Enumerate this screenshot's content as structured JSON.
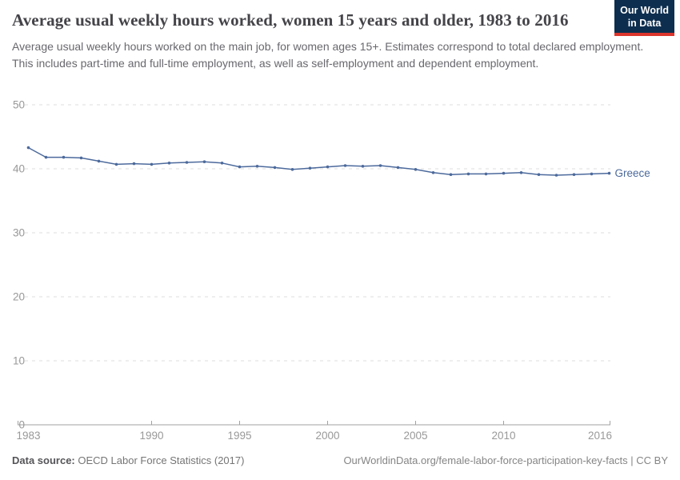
{
  "header": {
    "title": "Average usual weekly hours worked, women 15 years and older, 1983 to 2016",
    "subtitle": "Average usual weekly hours worked on the main job, for women ages 15+. Estimates correspond to total declared employment. This includes part-time and full-time employment, as well as self-employment and dependent employment."
  },
  "logo": {
    "line1": "Our World",
    "line2": "in Data",
    "background": "#0d2e4f",
    "accent": "#dc352c"
  },
  "chart_data": {
    "type": "line",
    "title": "Average usual weekly hours worked, women 15 years and older, 1983 to 2016",
    "xlabel": "",
    "ylabel": "",
    "x": [
      1983,
      1984,
      1985,
      1986,
      1987,
      1988,
      1989,
      1990,
      1991,
      1992,
      1993,
      1994,
      1995,
      1996,
      1997,
      1998,
      1999,
      2000,
      2001,
      2002,
      2003,
      2004,
      2005,
      2006,
      2007,
      2008,
      2009,
      2010,
      2011,
      2012,
      2013,
      2014,
      2015,
      2016
    ],
    "series": [
      {
        "name": "Greece",
        "color": "#4C6A9C",
        "values": [
          43.3,
          41.8,
          41.8,
          41.7,
          41.2,
          40.7,
          40.8,
          40.7,
          40.9,
          41.0,
          41.1,
          40.9,
          40.3,
          40.4,
          40.2,
          39.9,
          40.1,
          40.3,
          40.5,
          40.4,
          40.5,
          40.2,
          39.9,
          39.4,
          39.1,
          39.2,
          39.2,
          39.3,
          39.4,
          39.1,
          39.0,
          39.1,
          39.2,
          39.3
        ]
      }
    ],
    "ylim": [
      0,
      50
    ],
    "yticks": [
      0,
      10,
      20,
      30,
      40,
      50
    ],
    "xticks": [
      1983,
      1990,
      1995,
      2000,
      2005,
      2010,
      2016
    ],
    "grid": "horizontal-dashed",
    "legend": "series label at end of line",
    "grid_color": "#dedede",
    "axis_color": "#a1a1a1",
    "tick_label_color": "#999999"
  },
  "footer": {
    "data_source_label": "Data source:",
    "data_source_value": " OECD Labor Force Statistics (2017)",
    "attribution": "OurWorldinData.org/female-labor-force-participation-key-facts | CC BY"
  }
}
